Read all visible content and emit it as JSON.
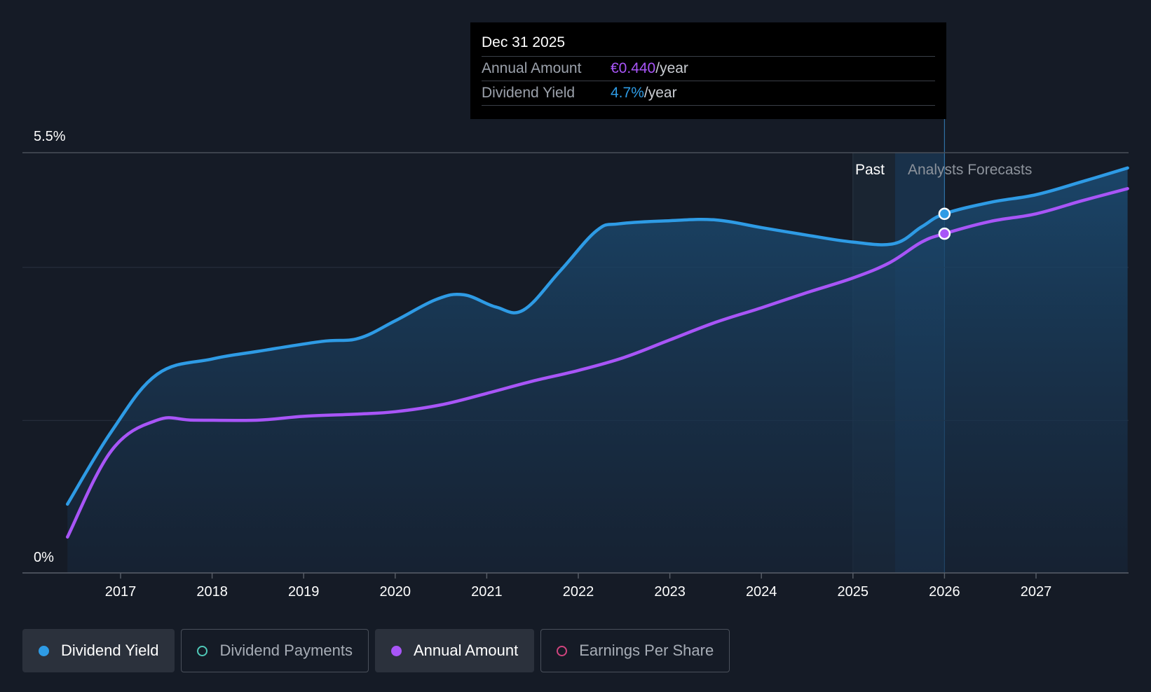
{
  "chart_data": {
    "type": "line",
    "y_axis": {
      "min_label": "0%",
      "max_label": "5.5%",
      "ylim": [
        0,
        5.5
      ]
    },
    "x_ticks": [
      "2017",
      "2018",
      "2019",
      "2020",
      "2021",
      "2022",
      "2023",
      "2024",
      "2025",
      "2026",
      "2027"
    ],
    "regions": {
      "past_label": "Past",
      "forecast_label": "Analysts Forecasts"
    },
    "series": [
      {
        "name": "Dividend Yield",
        "color": "#2e9be5",
        "points": [
          [
            2016.42,
            0.9
          ],
          [
            2016.9,
            1.85
          ],
          [
            2017.4,
            2.6
          ],
          [
            2018.0,
            2.8
          ],
          [
            2018.5,
            2.9
          ],
          [
            2019.2,
            3.03
          ],
          [
            2019.6,
            3.07
          ],
          [
            2020.0,
            3.3
          ],
          [
            2020.45,
            3.58
          ],
          [
            2020.75,
            3.64
          ],
          [
            2021.1,
            3.48
          ],
          [
            2021.4,
            3.44
          ],
          [
            2021.8,
            3.95
          ],
          [
            2022.2,
            4.48
          ],
          [
            2022.45,
            4.57
          ],
          [
            2023.0,
            4.61
          ],
          [
            2023.5,
            4.62
          ],
          [
            2024.0,
            4.52
          ],
          [
            2024.5,
            4.42
          ],
          [
            2025.0,
            4.33
          ],
          [
            2025.45,
            4.31
          ],
          [
            2025.75,
            4.53
          ],
          [
            2026.0,
            4.7
          ],
          [
            2026.5,
            4.85
          ],
          [
            2027.0,
            4.95
          ],
          [
            2027.5,
            5.12
          ],
          [
            2028.0,
            5.3
          ]
        ]
      },
      {
        "name": "Annual Amount",
        "color": "#a855f7",
        "points": [
          [
            2016.42,
            0.47
          ],
          [
            2016.9,
            1.6
          ],
          [
            2017.4,
            2.0
          ],
          [
            2017.8,
            2.0
          ],
          [
            2018.5,
            2.0
          ],
          [
            2019.0,
            2.05
          ],
          [
            2019.6,
            2.08
          ],
          [
            2020.0,
            2.11
          ],
          [
            2020.5,
            2.2
          ],
          [
            2021.0,
            2.35
          ],
          [
            2021.5,
            2.51
          ],
          [
            2022.0,
            2.65
          ],
          [
            2022.5,
            2.82
          ],
          [
            2023.0,
            3.05
          ],
          [
            2023.5,
            3.28
          ],
          [
            2024.0,
            3.47
          ],
          [
            2024.5,
            3.67
          ],
          [
            2025.0,
            3.86
          ],
          [
            2025.4,
            4.06
          ],
          [
            2025.75,
            4.33
          ],
          [
            2026.0,
            4.44
          ],
          [
            2026.5,
            4.6
          ],
          [
            2027.0,
            4.7
          ],
          [
            2027.5,
            4.87
          ],
          [
            2028.0,
            5.03
          ]
        ]
      }
    ],
    "highlight": {
      "x": 2026.0,
      "yield": 4.7,
      "amount": 4.44
    }
  },
  "tooltip": {
    "date": "Dec 31 2025",
    "rows": [
      {
        "key": "Annual Amount",
        "value": "€0.440",
        "unit": "/year"
      },
      {
        "key": "Dividend Yield",
        "value": "4.7%",
        "unit": "/year"
      }
    ]
  },
  "legend": [
    {
      "label": "Dividend Yield",
      "color": "#2e9be5",
      "filled": true,
      "active": true
    },
    {
      "label": "Dividend Payments",
      "color": "#4fc9b8",
      "filled": false,
      "active": false
    },
    {
      "label": "Annual Amount",
      "color": "#a855f7",
      "filled": true,
      "active": true
    },
    {
      "label": "Earnings Per Share",
      "color": "#d0447e",
      "filled": false,
      "active": false
    }
  ]
}
